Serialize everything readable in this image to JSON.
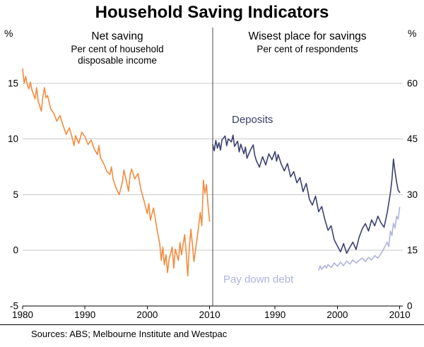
{
  "title": "Household Saving Indicators",
  "source_note": "Sources: ABS; Melbourne Institute and Westpac",
  "chart_data": {
    "type": "line",
    "layout": "two-panel",
    "grid": true,
    "legend_position": "inline-labels",
    "style": {
      "grid_color": "#C9C9C9",
      "axis_color": "#000000",
      "divider_color": "#4A4A4A",
      "background": "#FFFFFF"
    },
    "panels": [
      {
        "title": "Net saving",
        "subtitle_line1": "Per cent of household",
        "subtitle_line2": "disposable income",
        "unit": "%",
        "axis_side": "left",
        "x_range": [
          1980,
          2010.5
        ],
        "y_range": [
          -5,
          20
        ],
        "y_ticks": [
          15,
          10,
          5,
          0,
          -5
        ],
        "x_ticks": [
          1980,
          1990,
          2000,
          2010
        ],
        "series": [
          {
            "name": "Net saving",
            "color": "#F28B3D",
            "points": [
              [
                1980.0,
                16.3
              ],
              [
                1980.25,
                15.0
              ],
              [
                1980.5,
                15.6
              ],
              [
                1980.75,
                14.9
              ],
              [
                1981.0,
                14.5
              ],
              [
                1981.25,
                15.1
              ],
              [
                1981.5,
                14.4
              ],
              [
                1982.0,
                13.6
              ],
              [
                1982.25,
                14.6
              ],
              [
                1982.5,
                13.4
              ],
              [
                1983.0,
                12.5
              ],
              [
                1983.25,
                13.8
              ],
              [
                1983.5,
                14.6
              ],
              [
                1983.75,
                13.7
              ],
              [
                1984.0,
                13.9
              ],
              [
                1984.5,
                12.7
              ],
              [
                1985.0,
                12.3
              ],
              [
                1985.5,
                11.6
              ],
              [
                1986.0,
                12.1
              ],
              [
                1986.5,
                11.2
              ],
              [
                1987.0,
                10.4
              ],
              [
                1987.5,
                11.0
              ],
              [
                1988.0,
                10.0
              ],
              [
                1988.25,
                9.4
              ],
              [
                1988.5,
                10.3
              ],
              [
                1989.0,
                9.6
              ],
              [
                1989.5,
                10.6
              ],
              [
                1990.0,
                10.2
              ],
              [
                1990.5,
                9.5
              ],
              [
                1991.0,
                9.9
              ],
              [
                1991.5,
                9.1
              ],
              [
                1992.0,
                8.6
              ],
              [
                1992.25,
                9.4
              ],
              [
                1992.5,
                8.3
              ],
              [
                1993.0,
                7.8
              ],
              [
                1993.5,
                7.1
              ],
              [
                1994.0,
                6.8
              ],
              [
                1994.25,
                7.5
              ],
              [
                1994.5,
                6.4
              ],
              [
                1995.0,
                5.6
              ],
              [
                1995.5,
                5.0
              ],
              [
                1996.0,
                6.1
              ],
              [
                1996.25,
                7.2
              ],
              [
                1996.5,
                6.6
              ],
              [
                1997.0,
                5.3
              ],
              [
                1997.25,
                6.8
              ],
              [
                1997.5,
                7.3
              ],
              [
                1998.0,
                6.4
              ],
              [
                1998.5,
                6.9
              ],
              [
                1999.0,
                5.4
              ],
              [
                1999.5,
                4.4
              ],
              [
                2000.0,
                3.3
              ],
              [
                2000.25,
                4.2
              ],
              [
                2000.5,
                2.7
              ],
              [
                2001.0,
                3.8
              ],
              [
                2001.5,
                2.1
              ],
              [
                2002.0,
                0.6
              ],
              [
                2002.25,
                -0.9
              ],
              [
                2002.5,
                0.3
              ],
              [
                2002.75,
                -1.3
              ],
              [
                2003.0,
                -0.4
              ],
              [
                2003.25,
                -2.0
              ],
              [
                2003.5,
                -0.8
              ],
              [
                2004.0,
                0.3
              ],
              [
                2004.25,
                -1.6
              ],
              [
                2004.5,
                0.1
              ],
              [
                2005.0,
                -0.9
              ],
              [
                2005.25,
                0.7
              ],
              [
                2005.5,
                -0.4
              ],
              [
                2006.0,
                1.4
              ],
              [
                2006.25,
                -0.2
              ],
              [
                2006.5,
                -2.3
              ],
              [
                2006.75,
                0.2
              ],
              [
                2007.0,
                1.9
              ],
              [
                2007.25,
                0.5
              ],
              [
                2007.5,
                -1.0
              ],
              [
                2008.0,
                1.1
              ],
              [
                2008.5,
                3.4
              ],
              [
                2008.75,
                2.2
              ],
              [
                2009.0,
                6.3
              ],
              [
                2009.25,
                5.1
              ],
              [
                2009.5,
                5.9
              ],
              [
                2009.75,
                4.0
              ],
              [
                2010.0,
                2.6
              ]
            ]
          }
        ]
      },
      {
        "title": "Wisest place for savings",
        "subtitle_line1": "Per cent of respondents",
        "unit": "%",
        "axis_side": "right",
        "x_range": [
          1980,
          2010.5
        ],
        "y_range": [
          0,
          75
        ],
        "y_ticks": [
          60,
          45,
          30,
          15,
          0
        ],
        "x_ticks": [
          1990,
          2000,
          2010
        ],
        "series": [
          {
            "name": "Deposits",
            "label": "Deposits",
            "color": "#3A4070",
            "points": [
              [
                1980.0,
                43.5
              ],
              [
                1980.25,
                41.8
              ],
              [
                1980.5,
                44.6
              ],
              [
                1980.75,
                42.5
              ],
              [
                1981.0,
                44.0
              ],
              [
                1981.25,
                42.0
              ],
              [
                1981.5,
                44.8
              ],
              [
                1982.0,
                45.8
              ],
              [
                1982.25,
                43.2
              ],
              [
                1982.5,
                45.0
              ],
              [
                1983.0,
                44.2
              ],
              [
                1983.25,
                46.0
              ],
              [
                1983.5,
                43.0
              ],
              [
                1984.0,
                44.4
              ],
              [
                1984.25,
                41.5
              ],
              [
                1984.5,
                43.6
              ],
              [
                1985.0,
                41.0
              ],
              [
                1985.25,
                42.8
              ],
              [
                1985.5,
                39.8
              ],
              [
                1986.0,
                41.8
              ],
              [
                1986.5,
                43.4
              ],
              [
                1986.75,
                40.6
              ],
              [
                1987.0,
                39.2
              ],
              [
                1987.5,
                37.4
              ],
              [
                1988.0,
                40.2
              ],
              [
                1988.5,
                38.0
              ],
              [
                1989.0,
                41.0
              ],
              [
                1989.5,
                39.4
              ],
              [
                1990.0,
                41.6
              ],
              [
                1990.25,
                39.0
              ],
              [
                1990.5,
                40.8
              ],
              [
                1991.0,
                38.2
              ],
              [
                1991.5,
                36.4
              ],
              [
                1992.0,
                38.4
              ],
              [
                1992.5,
                34.8
              ],
              [
                1993.0,
                36.2
              ],
              [
                1993.5,
                33.2
              ],
              [
                1994.0,
                34.6
              ],
              [
                1994.5,
                30.8
              ],
              [
                1995.0,
                33.0
              ],
              [
                1995.25,
                31.0
              ],
              [
                1995.5,
                28.8
              ],
              [
                1996.0,
                27.2
              ],
              [
                1996.5,
                29.6
              ],
              [
                1997.0,
                25.4
              ],
              [
                1997.5,
                26.8
              ],
              [
                1998.0,
                23.2
              ],
              [
                1998.5,
                20.4
              ],
              [
                1999.0,
                21.6
              ],
              [
                1999.5,
                17.8
              ],
              [
                2000.0,
                16.2
              ],
              [
                2000.5,
                14.6
              ],
              [
                2001.0,
                16.8
              ],
              [
                2001.5,
                14.2
              ],
              [
                2002.0,
                15.8
              ],
              [
                2002.5,
                17.2
              ],
              [
                2003.0,
                15.2
              ],
              [
                2003.5,
                18.6
              ],
              [
                2004.0,
                20.8
              ],
              [
                2004.5,
                22.2
              ],
              [
                2005.0,
                20.2
              ],
              [
                2005.5,
                23.2
              ],
              [
                2006.0,
                21.6
              ],
              [
                2006.5,
                24.2
              ],
              [
                2007.0,
                22.4
              ],
              [
                2007.5,
                21.2
              ],
              [
                2008.0,
                25.2
              ],
              [
                2008.5,
                30.4
              ],
              [
                2008.75,
                34.0
              ],
              [
                2009.0,
                39.6
              ],
              [
                2009.25,
                36.2
              ],
              [
                2009.5,
                33.4
              ],
              [
                2009.75,
                31.2
              ],
              [
                2010.0,
                30.6
              ]
            ]
          },
          {
            "name": "Pay down debt",
            "label": "Pay down debt",
            "color": "#AEB3DE",
            "points": [
              [
                1997.0,
                9.6
              ],
              [
                1997.25,
                10.8
              ],
              [
                1997.5,
                9.9
              ],
              [
                1998.0,
                10.9
              ],
              [
                1998.25,
                10.2
              ],
              [
                1998.5,
                11.2
              ],
              [
                1999.0,
                10.4
              ],
              [
                1999.5,
                11.6
              ],
              [
                2000.0,
                10.7
              ],
              [
                2000.5,
                11.8
              ],
              [
                2001.0,
                10.9
              ],
              [
                2001.5,
                12.1
              ],
              [
                2002.0,
                11.3
              ],
              [
                2002.5,
                12.4
              ],
              [
                2003.0,
                11.6
              ],
              [
                2003.5,
                12.3
              ],
              [
                2004.0,
                12.9
              ],
              [
                2004.5,
                12.0
              ],
              [
                2005.0,
                13.1
              ],
              [
                2005.5,
                12.4
              ],
              [
                2006.0,
                13.6
              ],
              [
                2006.5,
                12.9
              ],
              [
                2007.0,
                14.1
              ],
              [
                2007.5,
                15.6
              ],
              [
                2008.0,
                17.2
              ],
              [
                2008.25,
                16.0
              ],
              [
                2008.5,
                20.2
              ],
              [
                2008.75,
                19.0
              ],
              [
                2009.0,
                22.3
              ],
              [
                2009.25,
                21.0
              ],
              [
                2009.5,
                24.2
              ],
              [
                2009.75,
                23.4
              ],
              [
                2010.0,
                26.6
              ]
            ]
          }
        ]
      }
    ]
  }
}
